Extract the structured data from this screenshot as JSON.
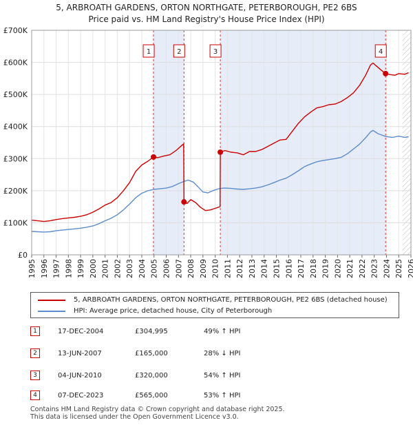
{
  "title_line1": "5, ARBROATH GARDENS, ORTON NORTHGATE, PETERBOROUGH, PE2 6BS",
  "title_line2": "Price paid vs. HM Land Registry's House Price Index (HPI)",
  "colors": {
    "property": "#cc0000",
    "hpi": "#5b8ccc",
    "shade": "#e6ecf8"
  },
  "chart_data": {
    "type": "line",
    "xlim": [
      1995,
      2026
    ],
    "ylim": [
      0,
      700000
    ],
    "y_ticks": [
      {
        "value": 0,
        "label": "£0"
      },
      {
        "value": 100000,
        "label": "£100K"
      },
      {
        "value": 200000,
        "label": "£200K"
      },
      {
        "value": 300000,
        "label": "£300K"
      },
      {
        "value": 400000,
        "label": "£400K"
      },
      {
        "value": 500000,
        "label": "£500K"
      },
      {
        "value": 600000,
        "label": "£600K"
      },
      {
        "value": 700000,
        "label": "£700K"
      }
    ],
    "x_ticks": [
      "1995",
      "1996",
      "1997",
      "1998",
      "1999",
      "2000",
      "2001",
      "2002",
      "2003",
      "2004",
      "2005",
      "2006",
      "2007",
      "2008",
      "2009",
      "2010",
      "2011",
      "2012",
      "2013",
      "2014",
      "2015",
      "2016",
      "2017",
      "2018",
      "2019",
      "2020",
      "2021",
      "2022",
      "2023",
      "2024",
      "2025",
      "2026"
    ],
    "shaded_periods": [
      [
        2004.96,
        2007.45
      ],
      [
        2010.42,
        2023.93
      ]
    ],
    "future_hatch_start": 2025.3,
    "series": [
      {
        "name": "5, ARBROATH GARDENS, ORTON NORTHGATE, PETERBOROUGH, PE2 6BS (detached house)",
        "color": "#cc0000",
        "points": [
          [
            1995.0,
            108000
          ],
          [
            1995.5,
            106000
          ],
          [
            1996.0,
            104000
          ],
          [
            1996.5,
            106000
          ],
          [
            1997.0,
            110000
          ],
          [
            1997.5,
            113000
          ],
          [
            1998.0,
            115000
          ],
          [
            1998.5,
            117000
          ],
          [
            1999.0,
            120000
          ],
          [
            1999.5,
            125000
          ],
          [
            2000.0,
            133000
          ],
          [
            2000.5,
            143000
          ],
          [
            2001.0,
            155000
          ],
          [
            2001.5,
            163000
          ],
          [
            2002.0,
            178000
          ],
          [
            2002.5,
            200000
          ],
          [
            2003.0,
            225000
          ],
          [
            2003.5,
            260000
          ],
          [
            2004.0,
            280000
          ],
          [
            2004.5,
            292000
          ],
          [
            2004.96,
            304995
          ],
          [
            2005.3,
            303000
          ],
          [
            2005.8,
            308000
          ],
          [
            2006.3,
            312000
          ],
          [
            2006.8,
            325000
          ],
          [
            2007.3,
            342000
          ],
          [
            2007.42,
            346000
          ],
          [
            2007.45,
            165000
          ],
          [
            2007.7,
            160000
          ],
          [
            2008.0,
            172000
          ],
          [
            2008.4,
            163000
          ],
          [
            2008.8,
            148000
          ],
          [
            2009.2,
            138000
          ],
          [
            2009.6,
            140000
          ],
          [
            2010.0,
            145000
          ],
          [
            2010.4,
            150000
          ],
          [
            2010.42,
            320000
          ],
          [
            2010.8,
            325000
          ],
          [
            2011.3,
            320000
          ],
          [
            2011.8,
            318000
          ],
          [
            2012.3,
            312000
          ],
          [
            2012.8,
            322000
          ],
          [
            2013.3,
            322000
          ],
          [
            2013.8,
            328000
          ],
          [
            2014.3,
            338000
          ],
          [
            2014.8,
            348000
          ],
          [
            2015.3,
            358000
          ],
          [
            2015.8,
            360000
          ],
          [
            2016.3,
            385000
          ],
          [
            2016.8,
            410000
          ],
          [
            2017.3,
            430000
          ],
          [
            2017.8,
            445000
          ],
          [
            2018.3,
            458000
          ],
          [
            2018.8,
            462000
          ],
          [
            2019.3,
            468000
          ],
          [
            2019.8,
            470000
          ],
          [
            2020.3,
            478000
          ],
          [
            2020.8,
            490000
          ],
          [
            2021.3,
            505000
          ],
          [
            2021.8,
            528000
          ],
          [
            2022.3,
            560000
          ],
          [
            2022.7,
            592000
          ],
          [
            2022.9,
            598000
          ],
          [
            2023.2,
            588000
          ],
          [
            2023.5,
            578000
          ],
          [
            2023.93,
            565000
          ],
          [
            2024.3,
            562000
          ],
          [
            2024.7,
            560000
          ],
          [
            2025.0,
            565000
          ],
          [
            2025.5,
            563000
          ],
          [
            2025.8,
            568000
          ]
        ]
      },
      {
        "name": "HPI: Average price, detached house, City of Peterborough",
        "color": "#5b8ccc",
        "points": [
          [
            1995.0,
            73000
          ],
          [
            1995.5,
            72000
          ],
          [
            1996.0,
            71000
          ],
          [
            1996.5,
            72000
          ],
          [
            1997.0,
            75000
          ],
          [
            1997.5,
            77000
          ],
          [
            1998.0,
            79000
          ],
          [
            1998.5,
            81000
          ],
          [
            1999.0,
            83000
          ],
          [
            1999.5,
            86000
          ],
          [
            2000.0,
            90000
          ],
          [
            2000.5,
            97000
          ],
          [
            2001.0,
            106000
          ],
          [
            2001.5,
            114000
          ],
          [
            2002.0,
            125000
          ],
          [
            2002.5,
            140000
          ],
          [
            2003.0,
            158000
          ],
          [
            2003.5,
            178000
          ],
          [
            2004.0,
            192000
          ],
          [
            2004.5,
            200000
          ],
          [
            2004.96,
            204000
          ],
          [
            2005.5,
            206000
          ],
          [
            2006.0,
            208000
          ],
          [
            2006.5,
            213000
          ],
          [
            2007.0,
            222000
          ],
          [
            2007.45,
            229000
          ],
          [
            2007.8,
            233000
          ],
          [
            2008.2,
            227000
          ],
          [
            2008.6,
            212000
          ],
          [
            2009.0,
            196000
          ],
          [
            2009.4,
            193000
          ],
          [
            2009.8,
            200000
          ],
          [
            2010.2,
            205000
          ],
          [
            2010.42,
            207000
          ],
          [
            2010.8,
            208000
          ],
          [
            2011.3,
            207000
          ],
          [
            2011.8,
            205000
          ],
          [
            2012.3,
            204000
          ],
          [
            2012.8,
            206000
          ],
          [
            2013.3,
            208000
          ],
          [
            2013.8,
            212000
          ],
          [
            2014.3,
            218000
          ],
          [
            2014.8,
            225000
          ],
          [
            2015.3,
            233000
          ],
          [
            2015.8,
            239000
          ],
          [
            2016.3,
            250000
          ],
          [
            2016.8,
            262000
          ],
          [
            2017.3,
            275000
          ],
          [
            2017.8,
            283000
          ],
          [
            2018.3,
            290000
          ],
          [
            2018.8,
            294000
          ],
          [
            2019.3,
            297000
          ],
          [
            2019.8,
            300000
          ],
          [
            2020.3,
            304000
          ],
          [
            2020.8,
            315000
          ],
          [
            2021.3,
            330000
          ],
          [
            2021.8,
            345000
          ],
          [
            2022.3,
            365000
          ],
          [
            2022.7,
            383000
          ],
          [
            2022.9,
            388000
          ],
          [
            2023.3,
            378000
          ],
          [
            2023.93,
            369000
          ],
          [
            2024.5,
            366000
          ],
          [
            2025.0,
            370000
          ],
          [
            2025.5,
            366000
          ],
          [
            2025.8,
            368000
          ]
        ]
      }
    ],
    "transactions": [
      {
        "label": "1",
        "x": 2004.96,
        "y": 304995,
        "date": "17-DEC-2004",
        "price": "£304,995",
        "hpi": "49% ↑ HPI"
      },
      {
        "label": "2",
        "x": 2007.45,
        "y": 165000,
        "date": "13-JUN-2007",
        "price": "£165,000",
        "hpi": "28% ↓ HPI"
      },
      {
        "label": "3",
        "x": 2010.42,
        "y": 320000,
        "date": "04-JUN-2010",
        "price": "£320,000",
        "hpi": "54% ↑ HPI"
      },
      {
        "label": "4",
        "x": 2023.93,
        "y": 565000,
        "date": "07-DEC-2023",
        "price": "£565,000",
        "hpi": "53% ↑ HPI"
      }
    ]
  },
  "legend": {
    "property_label": "5, ARBROATH GARDENS, ORTON NORTHGATE, PETERBOROUGH, PE2 6BS (detached house)",
    "hpi_label": "HPI: Average price, detached house, City of Peterborough"
  },
  "footer": {
    "line1": "Contains HM Land Registry data © Crown copyright and database right 2025.",
    "line2": "This data is licensed under the Open Government Licence v3.0."
  }
}
